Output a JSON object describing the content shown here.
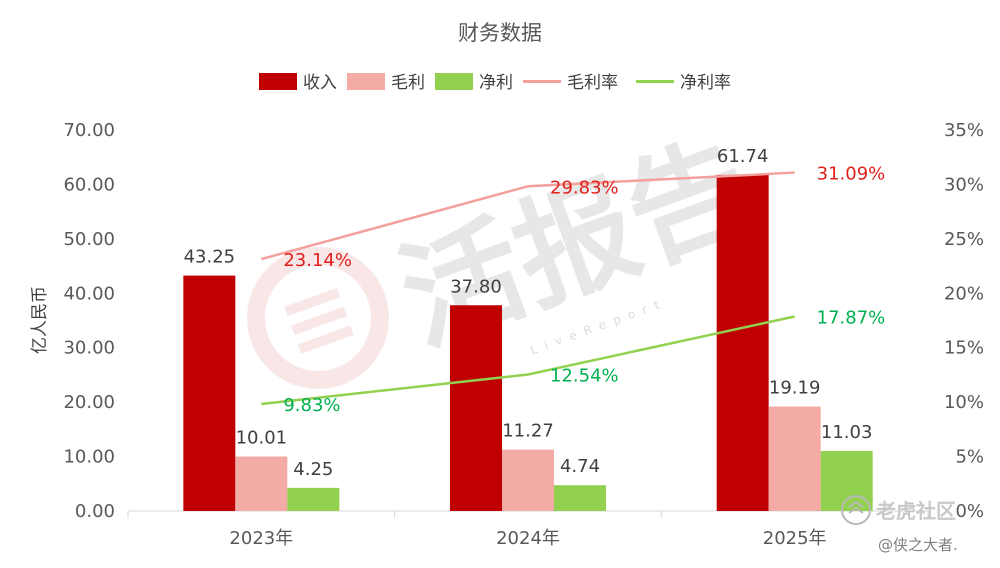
{
  "chart_data": {
    "type": "bar",
    "title": "财务数据",
    "categories": [
      "2023年",
      "2024年",
      "2025年"
    ],
    "ylabel": "亿人民币",
    "ylim": [
      0,
      70
    ],
    "yticks": [
      "0.00",
      "10.00",
      "20.00",
      "30.00",
      "40.00",
      "50.00",
      "60.00",
      "70.00"
    ],
    "y2lim": [
      0,
      35
    ],
    "y2ticks": [
      "0%",
      "5%",
      "10%",
      "15%",
      "20%",
      "25%",
      "30%",
      "35%"
    ],
    "series": [
      {
        "name": "收入",
        "kind": "bar",
        "axis": "left",
        "color": "#c00000",
        "values": [
          43.25,
          37.8,
          61.74
        ],
        "labels": [
          "43.25",
          "37.80",
          "61.74"
        ]
      },
      {
        "name": "毛利",
        "kind": "bar",
        "axis": "left",
        "color": "#f4aaa5",
        "values": [
          10.01,
          11.27,
          19.19
        ],
        "labels": [
          "10.01",
          "11.27",
          "19.19"
        ]
      },
      {
        "name": "净利",
        "kind": "bar",
        "axis": "left",
        "color": "#92d050",
        "values": [
          4.25,
          4.74,
          11.03
        ],
        "labels": [
          "4.25",
          "4.74",
          "11.03"
        ]
      },
      {
        "name": "毛利率",
        "kind": "line",
        "axis": "right",
        "color": "#f4a09c",
        "label_color": "#e0201b",
        "values": [
          23.14,
          29.83,
          31.09
        ],
        "labels": [
          "23.14%",
          "29.83%",
          "31.09%"
        ]
      },
      {
        "name": "净利率",
        "kind": "line",
        "axis": "right",
        "color": "#92d050",
        "label_color": "#00b050",
        "values": [
          9.83,
          12.54,
          17.87
        ],
        "labels": [
          "9.83%",
          "12.54%",
          "17.87%"
        ]
      }
    ],
    "grid": false,
    "legend_position": "top-center"
  },
  "watermark": {
    "brand": "活报告",
    "sub": "LiveReport",
    "credit_brand": "老虎社区",
    "credit_user": "@侠之大者."
  }
}
